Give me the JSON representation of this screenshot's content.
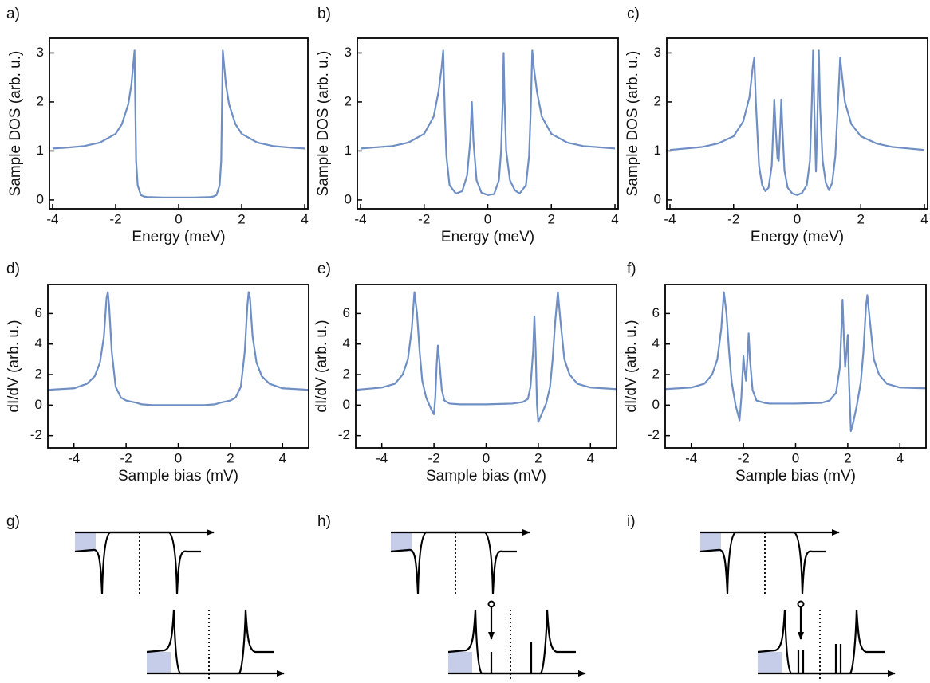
{
  "chart_data": [
    {
      "type": "line",
      "panel": "a)",
      "xlabel": "Energy (meV)",
      "ylabel": "Sample DOS (arb. u.)",
      "color": "#6f8fc4",
      "xlim": [
        -4.1,
        4.1
      ],
      "ylim": [
        -0.18,
        3.3
      ],
      "xticks": [
        -4,
        -2,
        0,
        2,
        4
      ],
      "yticks": [
        0,
        1,
        2,
        3
      ],
      "x": [
        -4,
        -3.5,
        -3,
        -2.5,
        -2,
        -1.8,
        -1.6,
        -1.5,
        -1.45,
        -1.4,
        -1.35,
        -1.3,
        -1.2,
        -1.1,
        -1,
        -0.5,
        0,
        0.5,
        1,
        1.1,
        1.2,
        1.3,
        1.35,
        1.4,
        1.45,
        1.5,
        1.6,
        1.8,
        2,
        2.5,
        3,
        3.5,
        4
      ],
      "values": [
        1.05,
        1.07,
        1.1,
        1.17,
        1.35,
        1.55,
        1.95,
        2.35,
        2.7,
        3.05,
        0.8,
        0.3,
        0.1,
        0.07,
        0.06,
        0.05,
        0.05,
        0.05,
        0.06,
        0.07,
        0.1,
        0.3,
        0.8,
        3.05,
        2.7,
        2.35,
        1.95,
        1.55,
        1.35,
        1.17,
        1.1,
        1.07,
        1.05
      ]
    },
    {
      "type": "line",
      "panel": "b)",
      "xlabel": "Energy (meV)",
      "ylabel": "Sample DOS (arb. u.)",
      "color": "#6f8fc4",
      "xlim": [
        -4.1,
        4.1
      ],
      "ylim": [
        -0.18,
        3.3
      ],
      "xticks": [
        -4,
        -2,
        0,
        2,
        4
      ],
      "yticks": [
        0,
        1,
        2,
        3
      ],
      "x": [
        -4,
        -3,
        -2.5,
        -2,
        -1.7,
        -1.55,
        -1.45,
        -1.4,
        -1.35,
        -1.3,
        -1.2,
        -1.0,
        -0.8,
        -0.65,
        -0.55,
        -0.5,
        -0.45,
        -0.35,
        -0.2,
        0,
        0.2,
        0.35,
        0.42,
        0.47,
        0.5,
        0.53,
        0.58,
        0.7,
        0.85,
        1.0,
        1.2,
        1.3,
        1.35,
        1.4,
        1.45,
        1.55,
        1.7,
        2,
        2.5,
        3,
        4
      ],
      "values": [
        1.05,
        1.1,
        1.17,
        1.35,
        1.7,
        2.2,
        2.7,
        3.05,
        1.8,
        0.9,
        0.3,
        0.13,
        0.18,
        0.5,
        1.2,
        2.0,
        1.2,
        0.4,
        0.15,
        0.1,
        0.12,
        0.4,
        1.0,
        2.0,
        3.0,
        2.0,
        1.0,
        0.4,
        0.2,
        0.13,
        0.3,
        0.9,
        1.8,
        3.05,
        2.7,
        2.2,
        1.7,
        1.35,
        1.17,
        1.1,
        1.05
      ]
    },
    {
      "type": "line",
      "panel": "c)",
      "xlabel": "Energy (meV)",
      "ylabel": "Sample DOS (arb. u.)",
      "color": "#6f8fc4",
      "xlim": [
        -4.1,
        4.1
      ],
      "ylim": [
        -0.18,
        3.3
      ],
      "xticks": [
        -4,
        -2,
        0,
        2,
        4
      ],
      "yticks": [
        0,
        1,
        2,
        3
      ],
      "x": [
        -4,
        -3,
        -2.5,
        -2,
        -1.7,
        -1.5,
        -1.4,
        -1.35,
        -1.3,
        -1.2,
        -1.1,
        -1.0,
        -0.9,
        -0.8,
        -0.75,
        -0.72,
        -0.68,
        -0.62,
        -0.58,
        -0.53,
        -0.5,
        -0.46,
        -0.4,
        -0.3,
        -0.15,
        0,
        0.15,
        0.3,
        0.4,
        0.46,
        0.5,
        0.54,
        0.59,
        0.63,
        0.68,
        0.72,
        0.8,
        0.9,
        1.0,
        1.1,
        1.2,
        1.3,
        1.35,
        1.4,
        1.5,
        1.7,
        2,
        2.5,
        3,
        4
      ],
      "values": [
        1.02,
        1.08,
        1.15,
        1.3,
        1.6,
        2.1,
        2.7,
        2.9,
        2.0,
        0.7,
        0.3,
        0.18,
        0.25,
        0.7,
        1.5,
        2.05,
        1.5,
        0.85,
        0.8,
        1.5,
        2.05,
        1.4,
        0.6,
        0.25,
        0.13,
        0.1,
        0.14,
        0.3,
        0.8,
        2.0,
        3.05,
        1.8,
        0.58,
        1.5,
        3.05,
        1.9,
        0.8,
        0.35,
        0.2,
        0.35,
        0.9,
        2.2,
        2.9,
        2.6,
        2.0,
        1.55,
        1.3,
        1.15,
        1.08,
        1.02
      ]
    },
    {
      "type": "line",
      "panel": "d)",
      "xlabel": "Sample bias (mV)",
      "ylabel": "dI/dV (arb. u.)",
      "color": "#6f8fc4",
      "xlim": [
        -5,
        5
      ],
      "ylim": [
        -2.8,
        7.9
      ],
      "xticks": [
        -4,
        -2,
        0,
        2,
        4
      ],
      "yticks": [
        -2,
        0,
        2,
        4,
        6
      ],
      "x": [
        -5,
        -4,
        -3.5,
        -3.2,
        -3,
        -2.85,
        -2.75,
        -2.7,
        -2.65,
        -2.55,
        -2.4,
        -2.2,
        -2,
        -1.6,
        -1.4,
        -1,
        0,
        1,
        1.4,
        1.6,
        2,
        2.2,
        2.4,
        2.55,
        2.65,
        2.7,
        2.75,
        2.85,
        3,
        3.2,
        3.5,
        4,
        5
      ],
      "values": [
        1.0,
        1.1,
        1.4,
        1.9,
        2.8,
        4.5,
        7.0,
        7.4,
        6.5,
        3.5,
        1.2,
        0.5,
        0.3,
        0.15,
        0.05,
        0,
        0,
        0,
        0.05,
        0.15,
        0.3,
        0.5,
        1.2,
        3.5,
        6.5,
        7.4,
        7.0,
        4.5,
        2.8,
        1.9,
        1.4,
        1.1,
        1.0
      ]
    },
    {
      "type": "line",
      "panel": "e)",
      "xlabel": "Sample bias (mV)",
      "ylabel": "dI/dV (arb. u.)",
      "color": "#6f8fc4",
      "xlim": [
        -5,
        5
      ],
      "ylim": [
        -2.8,
        7.9
      ],
      "xticks": [
        -4,
        -2,
        0,
        2,
        4
      ],
      "yticks": [
        -2,
        0,
        2,
        4,
        6
      ],
      "x": [
        -5,
        -4,
        -3.5,
        -3.2,
        -3,
        -2.85,
        -2.75,
        -2.65,
        -2.55,
        -2.45,
        -2.3,
        -2.1,
        -2.0,
        -1.95,
        -1.9,
        -1.85,
        -1.8,
        -1.7,
        -1.6,
        -1.4,
        -1,
        0,
        1,
        1.4,
        1.6,
        1.7,
        1.8,
        1.85,
        1.9,
        1.95,
        2.0,
        2.1,
        2.3,
        2.45,
        2.55,
        2.65,
        2.75,
        2.85,
        3,
        3.2,
        3.5,
        4,
        5
      ],
      "values": [
        1.0,
        1.15,
        1.4,
        2.0,
        3.0,
        5.0,
        7.4,
        6.0,
        3.5,
        1.6,
        0.5,
        -0.3,
        -0.6,
        0.5,
        2.5,
        3.9,
        3.0,
        1.0,
        0.3,
        0.1,
        0.05,
        0.05,
        0.1,
        0.2,
        0.4,
        1.2,
        3.5,
        5.8,
        3.5,
        0.0,
        -1.1,
        -0.7,
        0.1,
        1.2,
        3.0,
        5.5,
        7.4,
        5.5,
        3.0,
        2.0,
        1.4,
        1.15,
        1.05
      ]
    },
    {
      "type": "line",
      "panel": "f)",
      "xlabel": "Sample bias (mV)",
      "ylabel": "dI/dV (arb. u.)",
      "color": "#6f8fc4",
      "xlim": [
        -5,
        5
      ],
      "ylim": [
        -2.8,
        7.9
      ],
      "xticks": [
        -4,
        -2,
        0,
        2,
        4
      ],
      "yticks": [
        -2,
        0,
        2,
        4,
        6
      ],
      "x": [
        -5,
        -4,
        -3.5,
        -3.2,
        -3,
        -2.85,
        -2.75,
        -2.65,
        -2.55,
        -2.45,
        -2.3,
        -2.15,
        -2.08,
        -2.0,
        -1.95,
        -1.9,
        -1.85,
        -1.8,
        -1.75,
        -1.65,
        -1.5,
        -1.2,
        -1,
        0,
        1,
        1.3,
        1.55,
        1.7,
        1.8,
        1.85,
        1.9,
        1.95,
        2.0,
        2.05,
        2.12,
        2.2,
        2.35,
        2.5,
        2.6,
        2.7,
        2.75,
        2.85,
        3,
        3.2,
        3.5,
        4,
        5
      ],
      "values": [
        1.05,
        1.15,
        1.4,
        2.0,
        3.0,
        5.0,
        7.4,
        6.0,
        3.5,
        1.5,
        0.0,
        -1.0,
        0.5,
        3.2,
        2.2,
        1.6,
        3.0,
        4.7,
        3.0,
        1.0,
        0.3,
        0.15,
        0.1,
        0.1,
        0.15,
        0.3,
        0.8,
        2.5,
        6.9,
        4.5,
        2.5,
        3.5,
        4.6,
        1.5,
        -1.7,
        -1.2,
        0.0,
        1.5,
        3.5,
        6.5,
        7.2,
        5.5,
        3.0,
        2.0,
        1.4,
        1.15,
        1.1
      ]
    }
  ],
  "schematics": [
    {
      "panel": "g)"
    },
    {
      "panel": "h)"
    },
    {
      "panel": "i)"
    }
  ]
}
